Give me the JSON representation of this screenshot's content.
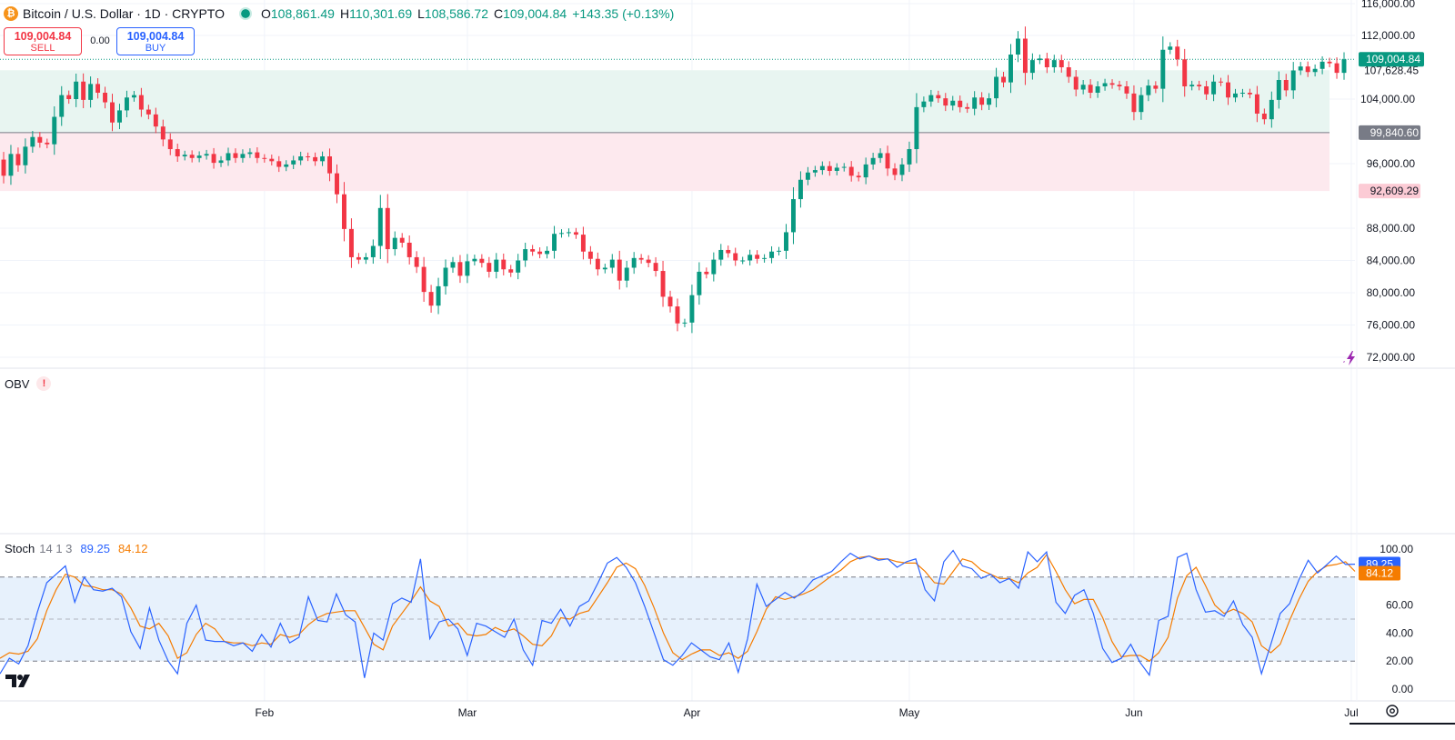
{
  "header": {
    "symbol_title": "Bitcoin / U.S. Dollar · 1D · CRYPTO",
    "symbol_icon": "bitcoin-icon",
    "o_label": "O",
    "o_value": "108,861.49",
    "h_label": "H",
    "h_value": "110,301.69",
    "l_label": "L",
    "l_value": "108,586.72",
    "c_label": "C",
    "c_value": "109,004.84",
    "change": "+143.35 (+0.13%)"
  },
  "trade": {
    "sell_price": "109,004.84",
    "sell_label": "SELL",
    "spread": "0.00",
    "buy_price": "109,004.84",
    "buy_label": "BUY"
  },
  "price_axis": {
    "ticks": [
      "116,000.00",
      "112,000.00",
      "104,000.00",
      "96,000.00",
      "88,000.00",
      "84,000.00",
      "80,000.00",
      "76,000.00",
      "72,000.00"
    ],
    "last_price_label": "109,004.84",
    "level_labels": [
      "107,628.45",
      "99,840.60",
      "92,609.29"
    ]
  },
  "time_axis": {
    "labels": [
      "Feb",
      "Mar",
      "Apr",
      "May",
      "Jun",
      "Jul"
    ]
  },
  "indicators": {
    "obv": {
      "name": "OBV",
      "warning_icon": "exclamation-icon"
    },
    "stoch": {
      "name": "Stoch",
      "params": "14 1 3",
      "k_value": "89.25",
      "d_value": "84.12",
      "axis_ticks": [
        "100.00",
        "60.00",
        "40.00",
        "20.00",
        "0.00"
      ],
      "upper_band": 80,
      "middle_band": 50,
      "lower_band": 20
    }
  },
  "colors": {
    "up": "#089981",
    "down": "#f23645",
    "stoch_k": "#2962ff",
    "stoch_d": "#f57c00",
    "upper_zone": "#e8f5f1",
    "lower_zone": "#fde9ee",
    "stoch_zone": "#e7f1fc"
  },
  "chart_data": [
    {
      "type": "candlestick",
      "title": "Bitcoin / U.S. Dollar · 1D · CRYPTO",
      "ylim": [
        70000,
        116000
      ],
      "x_labels": [
        "Feb",
        "Mar",
        "Apr",
        "May",
        "Jun",
        "Jul"
      ],
      "levels": [
        {
          "price": 107628.45,
          "zone": "upper-bound"
        },
        {
          "price": 99840.6,
          "zone": "mid-line"
        },
        {
          "price": 92609.29,
          "zone": "lower-bound"
        }
      ],
      "last_price": 109004.84,
      "close": [
        94500,
        97200,
        95800,
        98100,
        99300,
        98600,
        98400,
        101800,
        104500,
        104000,
        106200,
        103900,
        105900,
        104800,
        103600,
        101100,
        102600,
        104200,
        104500,
        102700,
        102100,
        100600,
        99000,
        97800,
        96900,
        97100,
        96700,
        97000,
        97200,
        96100,
        96400,
        97300,
        96700,
        97200,
        97400,
        96700,
        96600,
        96300,
        95600,
        95900,
        96400,
        96900,
        96800,
        96300,
        96900,
        94800,
        92200,
        87900,
        84400,
        84100,
        84400,
        85800,
        90500,
        85400,
        86800,
        86200,
        84400,
        83200,
        80100,
        78400,
        80800,
        83100,
        83800,
        82100,
        83900,
        84200,
        83700,
        82600,
        84100,
        82900,
        82500,
        84000,
        85400,
        85100,
        84800,
        85200,
        87300,
        87400,
        87500,
        87200,
        85100,
        84200,
        82900,
        83100,
        84100,
        81500,
        83100,
        84300,
        84100,
        83700,
        82700,
        79500,
        78300,
        76200,
        76300,
        79700,
        82600,
        82300,
        84100,
        85300,
        84900,
        84000,
        84000,
        84700,
        84200,
        84300,
        85100,
        85200,
        87500,
        91600,
        94000,
        94900,
        95200,
        95700,
        95100,
        95500,
        95600,
        94500,
        94300,
        95900,
        96700,
        97300,
        95400,
        94600,
        95900,
        97800,
        103000,
        103700,
        104500,
        104100,
        103200,
        103800,
        103000,
        102800,
        104200,
        103300,
        104100,
        106800,
        106100,
        109600,
        111600,
        107300,
        108900,
        109100,
        108000,
        108900,
        108000,
        106800,
        105200,
        105800,
        104800,
        105600,
        106000,
        105800,
        105600,
        104700,
        102400,
        104500,
        105700,
        105300,
        110200,
        110600,
        109000,
        105600,
        105800,
        105600,
        104600,
        106200,
        106100,
        104200,
        104700,
        104800,
        104600,
        102200,
        101500,
        103900,
        106400,
        105100,
        107600,
        108100,
        107400,
        107800,
        108700,
        108500,
        107300,
        109005
      ]
    },
    {
      "type": "line",
      "title": "Stoch 14 1 3",
      "ylim": [
        0,
        100
      ],
      "series": [
        {
          "name": "89.25",
          "values": [
            11,
            22,
            18,
            31,
            55,
            76,
            82,
            88,
            62,
            80,
            71,
            70,
            72,
            66,
            41,
            29,
            58,
            35,
            20,
            11,
            47,
            60,
            35,
            34,
            34,
            31,
            33,
            27,
            39,
            30,
            47,
            33,
            37,
            66,
            49,
            48,
            68,
            53,
            48,
            8,
            40,
            35,
            61,
            65,
            62,
            93,
            36,
            48,
            50,
            43,
            24,
            47,
            45,
            41,
            37,
            50,
            28,
            17,
            49,
            47,
            57,
            45,
            59,
            63,
            76,
            90,
            94,
            87,
            76,
            59,
            40,
            21,
            17,
            24,
            33,
            28,
            23,
            21,
            33,
            12,
            36,
            75,
            59,
            64,
            69,
            65,
            70,
            78,
            81,
            84,
            91,
            97,
            93,
            95,
            92,
            93,
            87,
            91,
            93,
            71,
            63,
            91,
            99,
            88,
            86,
            79,
            82,
            76,
            79,
            72,
            98,
            91,
            98,
            62,
            54,
            67,
            71,
            54,
            29,
            19,
            22,
            32,
            19,
            10,
            49,
            52,
            94,
            97,
            71,
            55,
            56,
            52,
            63,
            46,
            37,
            11,
            32,
            54,
            61,
            78,
            92,
            83,
            89,
            95,
            89,
            89.25
          ]
        },
        {
          "name": "84.12",
          "values": [
            22,
            26,
            25,
            27,
            36,
            56,
            71,
            82,
            80,
            74,
            73,
            71,
            71,
            68,
            58,
            45,
            43,
            47,
            38,
            22,
            26,
            39,
            47,
            43,
            34,
            33,
            33,
            31,
            33,
            32,
            39,
            37,
            39,
            46,
            51,
            54,
            55,
            56,
            56,
            44,
            32,
            28,
            45,
            54,
            63,
            73,
            63,
            59,
            45,
            47,
            39,
            38,
            39,
            44,
            41,
            43,
            38,
            32,
            31,
            38,
            51,
            50,
            54,
            56,
            66,
            76,
            87,
            90,
            86,
            74,
            58,
            40,
            26,
            21,
            25,
            28,
            28,
            24,
            26,
            22,
            27,
            41,
            57,
            66,
            64,
            66,
            68,
            71,
            76,
            81,
            85,
            91,
            94,
            95,
            93,
            93,
            91,
            90,
            90,
            84,
            76,
            75,
            84,
            93,
            91,
            85,
            82,
            79,
            79,
            76,
            83,
            87,
            96,
            84,
            71,
            61,
            64,
            64,
            51,
            34,
            23,
            24,
            24,
            20,
            26,
            37,
            65,
            81,
            87,
            74,
            60,
            54,
            57,
            54,
            48,
            31,
            26,
            32,
            49,
            64,
            77,
            84,
            88,
            89,
            91,
            84.12
          ]
        }
      ]
    }
  ]
}
